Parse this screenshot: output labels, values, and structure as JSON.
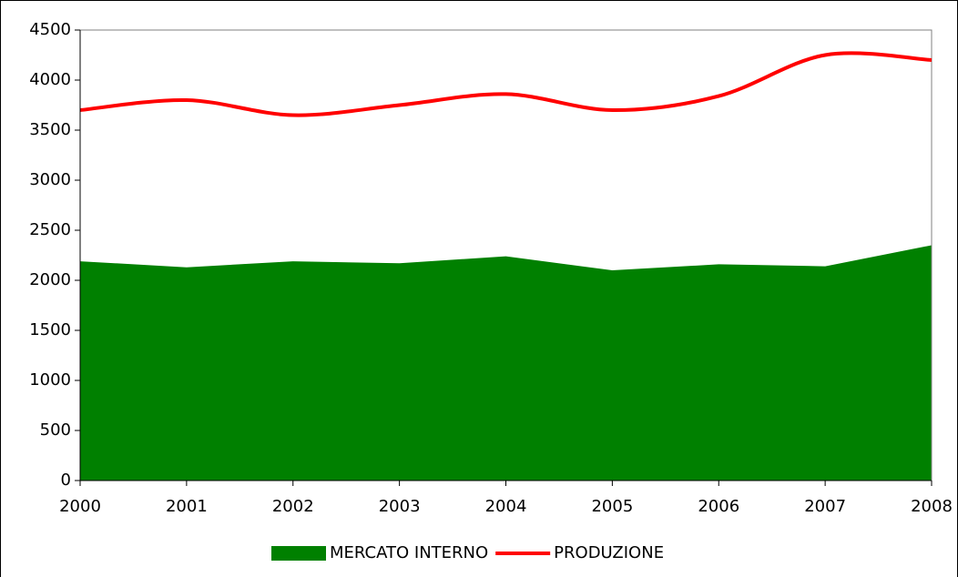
{
  "chart_data": {
    "type": "area-line",
    "x": [
      2000,
      2001,
      2002,
      2003,
      2004,
      2005,
      2006,
      2007,
      2008
    ],
    "series": [
      {
        "name": "MERCATO INTERNO",
        "type": "area",
        "color": "#008000",
        "values": [
          2190,
          2130,
          2190,
          2170,
          2240,
          2100,
          2160,
          2140,
          2350
        ]
      },
      {
        "name": "PRODUZIONE",
        "type": "line",
        "color": "#ff0000",
        "values": [
          3700,
          3800,
          3650,
          3750,
          3860,
          3700,
          3840,
          4250,
          4200
        ]
      }
    ],
    "xlim": [
      2000,
      2008
    ],
    "xticks": [
      2000,
      2001,
      2002,
      2003,
      2004,
      2005,
      2006,
      2007,
      2008
    ],
    "ylim": [
      0,
      4500
    ],
    "yticks": [
      0,
      500,
      1000,
      1500,
      2000,
      2500,
      3000,
      3500,
      4000,
      4500
    ],
    "legend": "bottom"
  }
}
